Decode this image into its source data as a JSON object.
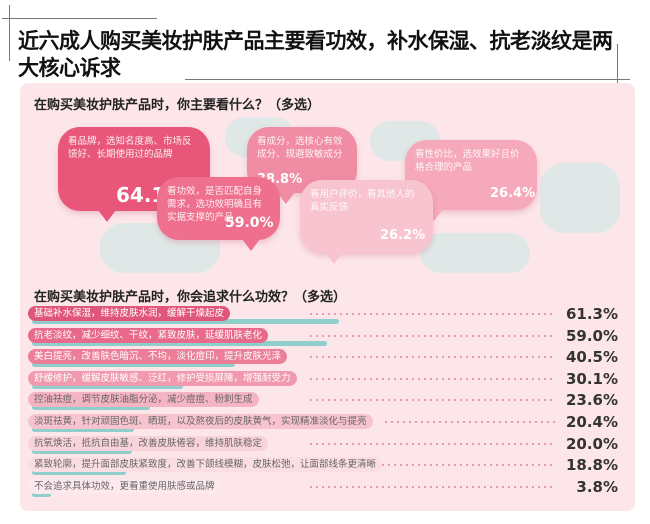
{
  "title": "近六成人购买美妆护肤产品主要看功效，补水保湿、抗老淡纹是两大核心诉求",
  "chart_data": [
    {
      "type": "bubble-callouts",
      "title": "在购买美妆护肤产品时，你主要看什么？（多选）",
      "items": [
        {
          "label": "看品牌，选知名度高、市场反馈好、长期使用过的品牌",
          "value": "64.1%"
        },
        {
          "label": "看功效，是否匹配自身需求，选功效明确且有实据支撑的产品",
          "value": "59.0%"
        },
        {
          "label": "看成分，选核心有效成分、规避致敏成分",
          "value": "38.8%"
        },
        {
          "label": "看用户评价，看其他人的真实反馈",
          "value": "26.2%"
        },
        {
          "label": "看性价比，选效果好且价格合理的产品",
          "value": "26.4%"
        }
      ]
    },
    {
      "type": "bar",
      "title": "在购买美妆护肤产品时，你会追求什么功效？（多选）",
      "categories": [
        "基础补水保湿，维持皮肤水润，缓解干燥起皮",
        "抗老淡纹，减少细纹、干纹，紧致皮肤，延缓肌肤老化",
        "美白提亮，改善肤色暗沉、不均，淡化痘印，提升皮肤光泽",
        "舒缓修护，缓解皮肤敏感、泛红，修护受损屏障，增强耐受力",
        "控油祛痘，调节皮肤油脂分泌，减少痘痘、粉刺生成",
        "淡斑祛黄，针对顽固色斑、晒斑，以及熬夜后的皮肤黄气，实现精准淡化与提亮",
        "抗氧焕活，抵抗自由基，改善皮肤倦容，维持肌肤稳定",
        "紧致轮廓，提升面部皮肤紧致度，改善下颌线模糊，皮肤松弛，让面部线条更清晰",
        "不会追求具体功效，更看重使用肤感或品牌"
      ],
      "values": [
        61.3,
        59.0,
        40.5,
        30.1,
        23.6,
        20.4,
        20.0,
        18.8,
        3.8
      ],
      "value_labels": [
        "61.3%",
        "59.0%",
        "40.5%",
        "30.1%",
        "23.6%",
        "20.4%",
        "20.0%",
        "18.8%",
        "3.8%"
      ],
      "bar_color": "#8fcfca",
      "label_colors": [
        "#e0567a",
        "#e8698a",
        "#ec7e98",
        "#f199ae",
        "#f5b4c3",
        "#f7c3cf",
        "#f9d3dc",
        "#fbdde4",
        "#fde9ed"
      ]
    }
  ]
}
